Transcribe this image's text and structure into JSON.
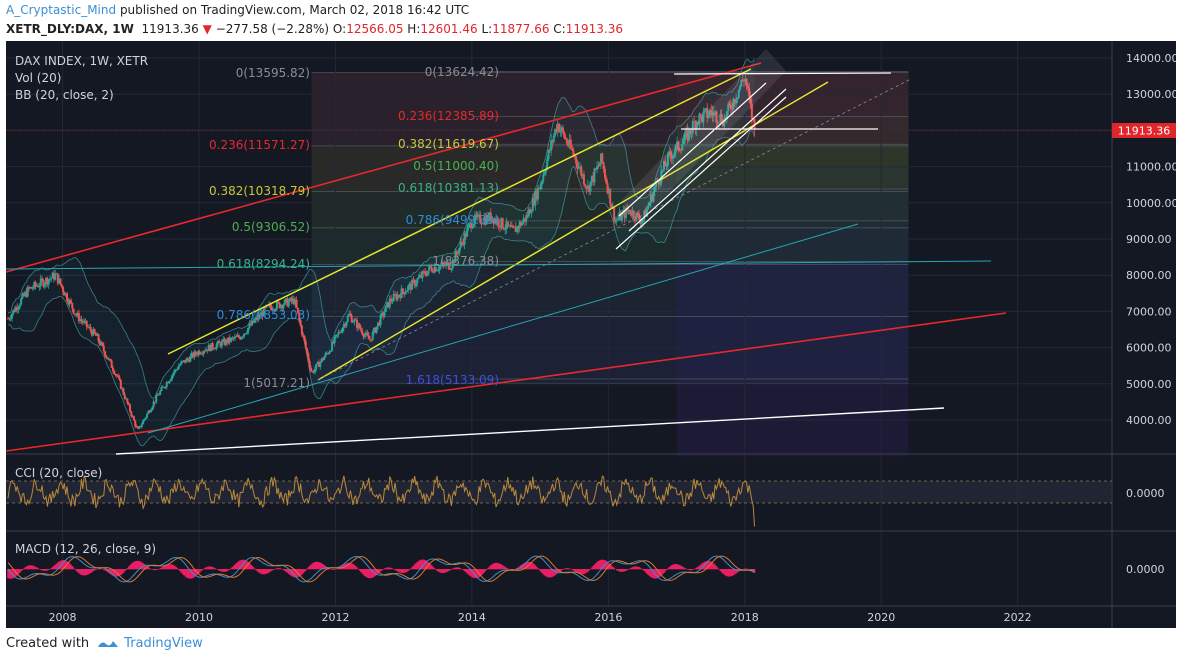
{
  "header": {
    "author": "A_Cryptastic_Mind",
    "published_text": "published on TradingView.com, March 02, 2018 16:42 UTC",
    "symbol": "XETR_DLY:DAX, 1W",
    "last": "11913.36",
    "change_arrow": "▼",
    "change": "−277.58 (−2.28%)",
    "o_label": "O:",
    "o_value": "12566.05",
    "h_label": "H:",
    "h_value": "12601.46",
    "l_label": "L:",
    "l_value": "11877.66",
    "c_label": "C:",
    "c_value": "11913.36"
  },
  "legend": {
    "title": "DAX INDEX, 1W, XETR",
    "vol": "Vol (20)",
    "bb": "BB (20, close, 2)",
    "cci": "CCI (20, close)",
    "macd": "MACD (12, 26, close, 9)"
  },
  "price_badge": "11913.36",
  "price_axis": [
    "14000.00",
    "13000.00",
    "12000.00",
    "11000.00",
    "10000.00",
    "9000.00",
    "8000.00",
    "7000.00",
    "6000.00",
    "5000.00",
    "4000.00"
  ],
  "cci_axis": "0.0000",
  "macd_axis": "0.0000",
  "time_axis": [
    "2008",
    "2010",
    "2012",
    "2014",
    "2016",
    "2018",
    "2020",
    "2022"
  ],
  "fib_labels": {
    "a0": "0(13595.82)",
    "a236": "0.236(11571.27)",
    "a382": "0.382(10318.79)",
    "a5": "0.5(9306.52)",
    "a618": "0.618(8294.24)",
    "a786": "0.786(6853.03)",
    "a1": "1(5017.21)",
    "b0": "0(13624.42)",
    "b236": "0.236(12385.89)",
    "b382": "0.382(11619.67)",
    "b5": "0.5(11000.40)",
    "b618": "0.618(10381.13)",
    "b786": "0.786(9499.39)",
    "b1": "1(8376.38)",
    "b1618": "1.618(5133.09)"
  },
  "colors": {
    "background": "#141823",
    "up": "#26a69a",
    "down": "#ef5350",
    "red_channel": "#e8282c",
    "yellow_channel": "#e6e62e",
    "white_line": "#ffffff",
    "cyan_line": "#26a6b5",
    "cci_line": "#b9893a",
    "macd_line": "#3a8fd6",
    "signal_line": "#d97a2b",
    "hist": "#e91e63",
    "badge": "#e0262b"
  },
  "footer": {
    "created_with": "Created with",
    "brand": "TradingView"
  },
  "chart_data": {
    "type": "candlestick",
    "title": "DAX INDEX, 1W, XETR",
    "last_close": 11913.36,
    "ylim": [
      3000,
      14500
    ],
    "x_range": [
      2007.2,
      2023.5
    ],
    "series": [
      {
        "name": "DAX",
        "x": [
          2007.2,
          2007.5,
          2007.9,
          2008.2,
          2008.5,
          2008.8,
          2009.1,
          2009.4,
          2009.7,
          2010.0,
          2010.3,
          2010.6,
          2011.0,
          2011.4,
          2011.65,
          2011.9,
          2012.2,
          2012.5,
          2012.8,
          2013.1,
          2013.4,
          2013.7,
          2014.0,
          2014.3,
          2014.6,
          2014.8,
          2015.0,
          2015.25,
          2015.5,
          2015.7,
          2015.9,
          2016.1,
          2016.3,
          2016.5,
          2016.7,
          2016.9,
          2017.1,
          2017.3,
          2017.5,
          2017.7,
          2017.9,
          2018.0,
          2018.15
        ],
        "values": [
          6800,
          7600,
          8000,
          6900,
          6300,
          5200,
          3700,
          4700,
          5500,
          5900,
          6100,
          6300,
          7100,
          7300,
          5300,
          5900,
          6900,
          6200,
          7300,
          7700,
          8200,
          8300,
          9500,
          9600,
          9200,
          9600,
          10500,
          12200,
          11300,
          10400,
          11200,
          9500,
          9800,
          9500,
          10500,
          11300,
          11700,
          12300,
          12500,
          12300,
          13100,
          13500,
          11913
        ]
      }
    ],
    "fibonacci_1": {
      "0": 13595.82,
      "0.236": 11571.27,
      "0.382": 10318.79,
      "0.5": 9306.52,
      "0.618": 8294.24,
      "0.786": 6853.03,
      "1": 5017.21
    },
    "fibonacci_2": {
      "0": 13624.42,
      "0.236": 12385.89,
      "0.382": 11619.67,
      "0.5": 11000.4,
      "0.618": 10381.13,
      "0.786": 9499.39,
      "1": 8376.38,
      "1.618": 5133.09
    }
  }
}
